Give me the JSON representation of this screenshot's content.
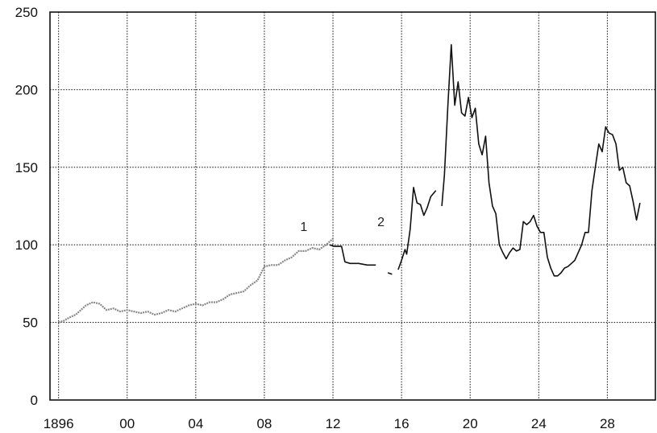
{
  "chart_data": {
    "type": "line",
    "title": "",
    "xlabel": "",
    "ylabel": "",
    "xlim": [
      1895.5,
      1930.8
    ],
    "ylim": [
      0,
      250
    ],
    "grid": true,
    "x_ticks": [
      {
        "value": 1896,
        "label": "1896"
      },
      {
        "value": 1900,
        "label": "00"
      },
      {
        "value": 1904,
        "label": "04"
      },
      {
        "value": 1908,
        "label": "08"
      },
      {
        "value": 1912,
        "label": "12"
      },
      {
        "value": 1916,
        "label": "16"
      },
      {
        "value": 1920,
        "label": "20"
      },
      {
        "value": 1924,
        "label": "24"
      },
      {
        "value": 1928,
        "label": "28"
      }
    ],
    "y_ticks": [
      {
        "value": 0,
        "label": "0"
      },
      {
        "value": 50,
        "label": "50"
      },
      {
        "value": 100,
        "label": "100"
      },
      {
        "value": 150,
        "label": "150"
      },
      {
        "value": 200,
        "label": "200"
      },
      {
        "value": 250,
        "label": "250"
      }
    ],
    "annotations": [
      {
        "text": "1",
        "x": 1910.3,
        "y": 109
      },
      {
        "text": "2",
        "x": 1914.8,
        "y": 112
      }
    ],
    "series": [
      {
        "style": "grey-rough",
        "color": "#888888",
        "x": [
          1896.0,
          1896.3,
          1896.6,
          1897.0,
          1897.3,
          1897.6,
          1898.0,
          1898.4,
          1898.8,
          1899.2,
          1899.6,
          1900.0,
          1900.4,
          1900.8,
          1901.2,
          1901.6,
          1902.0,
          1902.4,
          1902.8,
          1903.2,
          1903.6,
          1904.0,
          1904.4,
          1904.8,
          1905.2,
          1905.6,
          1906.0,
          1906.4,
          1906.8,
          1907.2,
          1907.6,
          1908.0,
          1908.4,
          1908.8,
          1909.2,
          1909.6,
          1910.0,
          1910.4,
          1910.8,
          1911.2,
          1911.6,
          1912.0
        ],
        "y": [
          50,
          51,
          53,
          55,
          58,
          61,
          63,
          62,
          58,
          59,
          57,
          58,
          57,
          56,
          57,
          55,
          56,
          58,
          57,
          59,
          61,
          62,
          61,
          63,
          63,
          65,
          68,
          69,
          70,
          74,
          77,
          86,
          87,
          87,
          90,
          92,
          96,
          96,
          98,
          97,
          100,
          104
        ]
      },
      {
        "style": "black",
        "color": "#111111",
        "x": [
          1911.8,
          1912.1,
          1912.5,
          1912.7,
          1913.0,
          1913.5,
          1914.0,
          1914.5
        ],
        "y": [
          100,
          99,
          99,
          89,
          88,
          88,
          87,
          87
        ]
      },
      {
        "style": "black",
        "color": "#111111",
        "x": [
          1915.2,
          1915.45
        ],
        "y": [
          82,
          81
        ]
      },
      {
        "style": "black",
        "color": "#111111",
        "x": [
          1915.8,
          1916.0,
          1916.2,
          1916.3,
          1916.5,
          1916.7,
          1916.9,
          1917.1,
          1917.3,
          1917.5,
          1917.7,
          1918.0
        ],
        "y": [
          84,
          90,
          97,
          94,
          110,
          137,
          127,
          126,
          119,
          124,
          131,
          135
        ]
      },
      {
        "style": "black",
        "color": "#111111",
        "x": [
          1918.35,
          1918.5,
          1918.7,
          1918.9,
          1919.1,
          1919.3,
          1919.5,
          1919.7,
          1919.9,
          1920.1,
          1920.3,
          1920.5,
          1920.7,
          1920.9,
          1921.1,
          1921.3,
          1921.5,
          1921.7,
          1921.9,
          1922.1,
          1922.3,
          1922.5,
          1922.7,
          1922.9,
          1923.1,
          1923.3,
          1923.5,
          1923.7,
          1923.9,
          1924.1,
          1924.3,
          1924.5,
          1924.7,
          1924.9,
          1925.1,
          1925.3,
          1925.5,
          1925.7,
          1925.9,
          1926.1,
          1926.3,
          1926.5,
          1926.7,
          1926.9,
          1927.1,
          1927.3,
          1927.5,
          1927.7,
          1927.9,
          1928.1,
          1928.3,
          1928.5,
          1928.7,
          1928.9,
          1929.1,
          1929.3,
          1929.5,
          1929.7,
          1929.9
        ],
        "y": [
          125,
          145,
          190,
          229,
          190,
          205,
          185,
          183,
          195,
          182,
          188,
          165,
          158,
          170,
          140,
          125,
          120,
          100,
          95,
          91,
          95,
          98,
          96,
          97,
          115,
          113,
          115,
          119,
          112,
          108,
          108,
          92,
          85,
          80,
          80,
          82,
          85,
          86,
          88,
          90,
          95,
          100,
          108,
          108,
          135,
          150,
          165,
          160,
          176,
          172,
          171,
          165,
          148,
          150,
          140,
          138,
          128,
          116,
          127
        ]
      }
    ]
  }
}
